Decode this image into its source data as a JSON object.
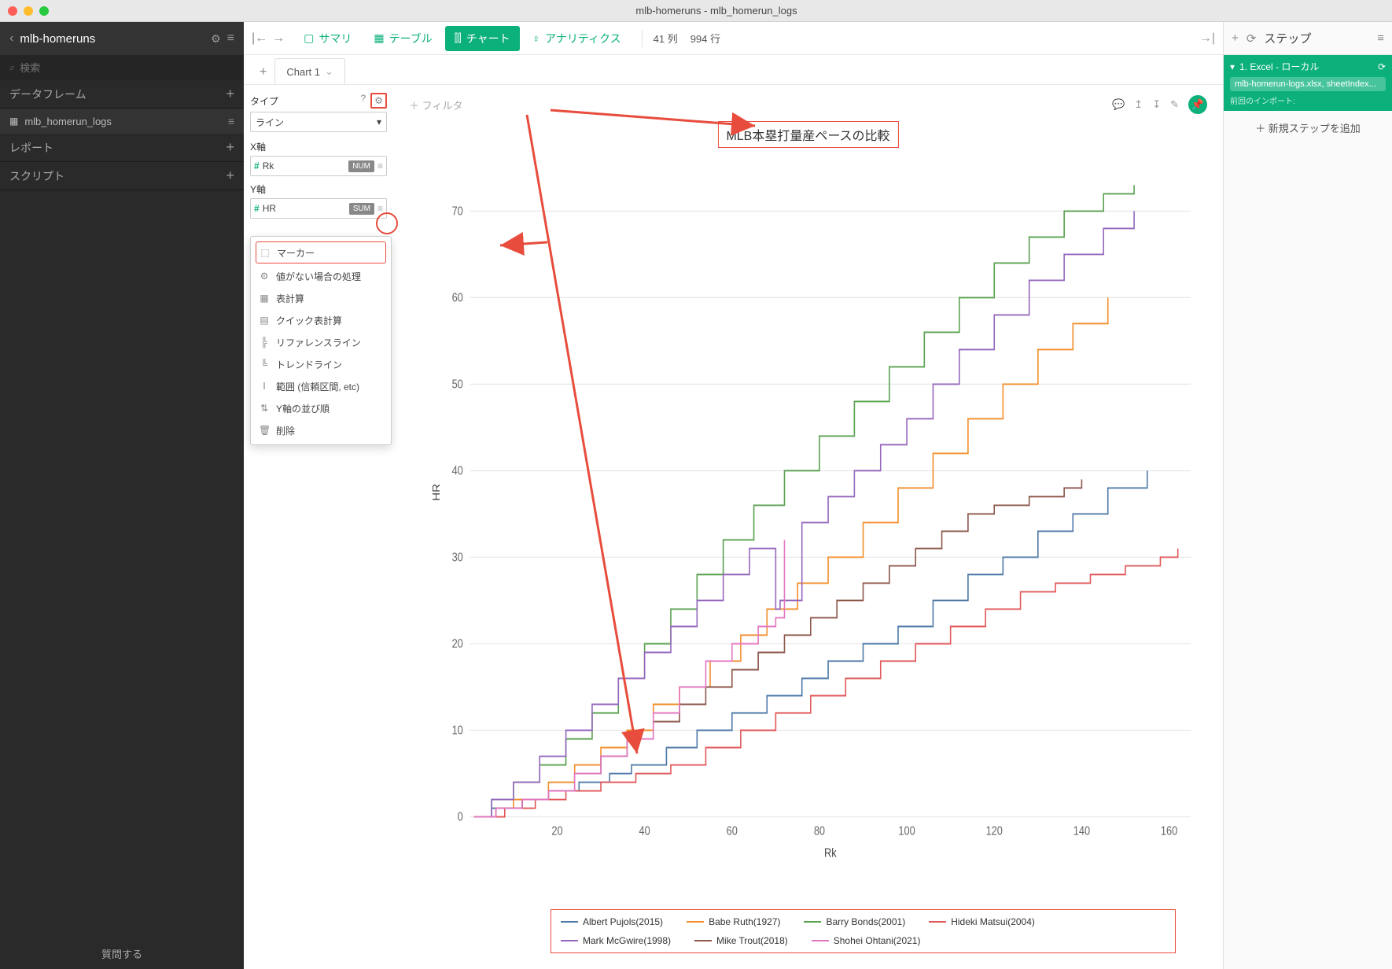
{
  "window": {
    "title": "mlb-homeruns - mlb_homerun_logs"
  },
  "sidebar": {
    "project": "mlb-homeruns",
    "search_placeholder": "検索",
    "sections": {
      "dataframes": "データフレーム",
      "reports": "レポート",
      "scripts": "スクリプト"
    },
    "df_item": "mlb_homerun_logs",
    "footer": "質問する"
  },
  "toolbar": {
    "summary": "サマリ",
    "table": "テーブル",
    "chart": "チャート",
    "analytics": "アナリティクス",
    "cols": "41 列",
    "rows": "994 行"
  },
  "tabs": {
    "chart1": "Chart 1"
  },
  "config": {
    "type_label": "タイプ",
    "type_value": "ライン",
    "xaxis_label": "X軸",
    "x_field": "Rk",
    "x_badge": "NUM",
    "yaxis_label": "Y軸",
    "y_field": "HR",
    "y_badge": "SUM"
  },
  "popover": {
    "items": [
      {
        "icon": "⬚",
        "label": "マーカー",
        "hl": true
      },
      {
        "icon": "⚙",
        "label": "値がない場合の処理"
      },
      {
        "icon": "▦",
        "label": "表計算"
      },
      {
        "icon": "▤",
        "label": "クイック表計算"
      },
      {
        "icon": "╠",
        "label": "リファレンスライン"
      },
      {
        "icon": "╚",
        "label": "トレンドライン"
      },
      {
        "icon": "Ⅰ",
        "label": "範囲 (信頼区間, etc)"
      },
      {
        "icon": "⇅",
        "label": "Y軸の並び順"
      },
      {
        "icon": "🗑",
        "label": "削除"
      }
    ]
  },
  "chart": {
    "filter": "＋  フィルタ",
    "title": "MLB本塁打量産ペースの比較",
    "ylabel": "HR",
    "xlabel": "Rk",
    "xdomain": [
      0,
      165
    ],
    "ydomain": [
      0,
      75
    ],
    "xticks": [
      20,
      40,
      60,
      80,
      100,
      120,
      140,
      160
    ],
    "yticks": [
      0,
      10,
      20,
      30,
      40,
      50,
      60,
      70
    ],
    "grid_color": "#e8e8e8",
    "axis_color": "#888",
    "series": [
      {
        "name": "Albert Pujols(2015)",
        "color": "#4e79a7",
        "pts": [
          [
            1,
            0
          ],
          [
            5,
            1
          ],
          [
            12,
            2
          ],
          [
            18,
            3
          ],
          [
            25,
            4
          ],
          [
            32,
            5
          ],
          [
            37,
            6
          ],
          [
            45,
            8
          ],
          [
            52,
            10
          ],
          [
            60,
            12
          ],
          [
            68,
            14
          ],
          [
            76,
            16
          ],
          [
            82,
            18
          ],
          [
            90,
            20
          ],
          [
            98,
            22
          ],
          [
            106,
            25
          ],
          [
            114,
            28
          ],
          [
            122,
            30
          ],
          [
            130,
            33
          ],
          [
            138,
            35
          ],
          [
            146,
            38
          ],
          [
            155,
            40
          ]
        ]
      },
      {
        "name": "Babe Ruth(1927)",
        "color": "#f28e2b",
        "pts": [
          [
            1,
            0
          ],
          [
            6,
            1
          ],
          [
            10,
            2
          ],
          [
            18,
            4
          ],
          [
            24,
            6
          ],
          [
            30,
            8
          ],
          [
            36,
            10
          ],
          [
            42,
            13
          ],
          [
            48,
            15
          ],
          [
            55,
            18
          ],
          [
            62,
            21
          ],
          [
            68,
            24
          ],
          [
            75,
            27
          ],
          [
            82,
            30
          ],
          [
            90,
            34
          ],
          [
            98,
            38
          ],
          [
            106,
            42
          ],
          [
            114,
            46
          ],
          [
            122,
            50
          ],
          [
            130,
            54
          ],
          [
            138,
            57
          ],
          [
            146,
            60
          ]
        ]
      },
      {
        "name": "Barry Bonds(2001)",
        "color": "#59a14f",
        "pts": [
          [
            1,
            0
          ],
          [
            5,
            2
          ],
          [
            10,
            4
          ],
          [
            16,
            6
          ],
          [
            22,
            9
          ],
          [
            28,
            12
          ],
          [
            34,
            16
          ],
          [
            40,
            20
          ],
          [
            46,
            24
          ],
          [
            52,
            28
          ],
          [
            58,
            32
          ],
          [
            65,
            36
          ],
          [
            72,
            40
          ],
          [
            80,
            44
          ],
          [
            88,
            48
          ],
          [
            96,
            52
          ],
          [
            104,
            56
          ],
          [
            112,
            60
          ],
          [
            120,
            64
          ],
          [
            128,
            67
          ],
          [
            136,
            70
          ],
          [
            145,
            72
          ],
          [
            152,
            73
          ]
        ]
      },
      {
        "name": "Hideki Matsui(2004)",
        "color": "#e15759",
        "pts": [
          [
            1,
            0
          ],
          [
            8,
            1
          ],
          [
            15,
            2
          ],
          [
            22,
            3
          ],
          [
            30,
            4
          ],
          [
            38,
            5
          ],
          [
            46,
            6
          ],
          [
            54,
            8
          ],
          [
            62,
            10
          ],
          [
            70,
            12
          ],
          [
            78,
            14
          ],
          [
            86,
            16
          ],
          [
            94,
            18
          ],
          [
            102,
            20
          ],
          [
            110,
            22
          ],
          [
            118,
            24
          ],
          [
            126,
            26
          ],
          [
            134,
            27
          ],
          [
            142,
            28
          ],
          [
            150,
            29
          ],
          [
            158,
            30
          ],
          [
            162,
            31
          ]
        ]
      },
      {
        "name": "Mark McGwire(1998)",
        "color": "#9467bd",
        "pts": [
          [
            1,
            0
          ],
          [
            5,
            2
          ],
          [
            10,
            4
          ],
          [
            16,
            7
          ],
          [
            22,
            10
          ],
          [
            28,
            13
          ],
          [
            34,
            16
          ],
          [
            40,
            19
          ],
          [
            46,
            22
          ],
          [
            52,
            25
          ],
          [
            58,
            28
          ],
          [
            64,
            31
          ],
          [
            70,
            24
          ],
          [
            71,
            25
          ],
          [
            76,
            34
          ],
          [
            82,
            37
          ],
          [
            88,
            40
          ],
          [
            94,
            43
          ],
          [
            100,
            46
          ],
          [
            106,
            50
          ],
          [
            112,
            54
          ],
          [
            120,
            58
          ],
          [
            128,
            62
          ],
          [
            136,
            65
          ],
          [
            145,
            68
          ],
          [
            152,
            70
          ]
        ]
      },
      {
        "name": "Mike Trout(2018)",
        "color": "#8c564b",
        "pts": [
          [
            1,
            0
          ],
          [
            6,
            1
          ],
          [
            12,
            2
          ],
          [
            18,
            3
          ],
          [
            24,
            5
          ],
          [
            30,
            7
          ],
          [
            36,
            9
          ],
          [
            42,
            11
          ],
          [
            48,
            13
          ],
          [
            54,
            15
          ],
          [
            60,
            17
          ],
          [
            66,
            19
          ],
          [
            72,
            21
          ],
          [
            78,
            23
          ],
          [
            84,
            25
          ],
          [
            90,
            27
          ],
          [
            96,
            29
          ],
          [
            102,
            31
          ],
          [
            108,
            33
          ],
          [
            114,
            35
          ],
          [
            120,
            36
          ],
          [
            128,
            37
          ],
          [
            136,
            38
          ],
          [
            140,
            39
          ]
        ]
      },
      {
        "name": "Shohei Ohtani(2021)",
        "color": "#e377c2",
        "pts": [
          [
            1,
            0
          ],
          [
            6,
            1
          ],
          [
            12,
            2
          ],
          [
            18,
            3
          ],
          [
            24,
            5
          ],
          [
            30,
            7
          ],
          [
            36,
            9
          ],
          [
            42,
            12
          ],
          [
            48,
            15
          ],
          [
            54,
            18
          ],
          [
            60,
            20
          ],
          [
            66,
            22
          ],
          [
            70,
            23
          ],
          [
            72,
            32
          ]
        ]
      }
    ]
  },
  "steps": {
    "title": "ステップ",
    "step1_label": "1. Excel - ローカル",
    "step1_file": "mlb-homerun-logs.xlsx, sheetIndex...",
    "step1_meta": "前回のインポート:",
    "add": "＋  新規ステップを追加"
  }
}
